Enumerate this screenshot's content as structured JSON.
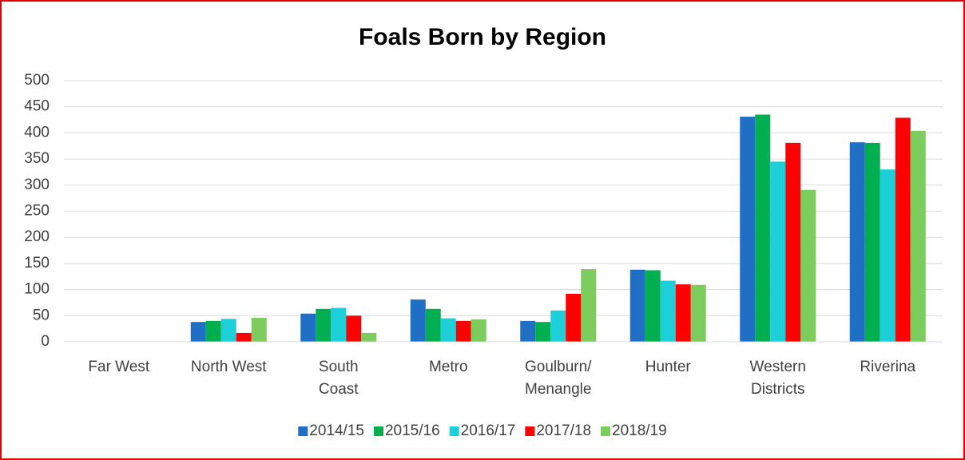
{
  "chart_data": {
    "type": "bar",
    "title": "Foals Born by Region",
    "categories": [
      "Far West",
      "North West",
      "South Coast",
      "Metro",
      "Goulburn/Menangle",
      "Hunter",
      "Western Districts",
      "Riverina"
    ],
    "series": [
      {
        "name": "2014/15",
        "color": "#1f6fc5",
        "values": [
          0,
          38,
          54,
          81,
          40,
          138,
          431,
          382
        ]
      },
      {
        "name": "2015/16",
        "color": "#00b050",
        "values": [
          0,
          40,
          63,
          63,
          38,
          137,
          435,
          381
        ]
      },
      {
        "name": "2016/17",
        "color": "#1ccfd8",
        "values": [
          0,
          44,
          65,
          45,
          60,
          117,
          345,
          330
        ]
      },
      {
        "name": "2017/18",
        "color": "#ff0000",
        "values": [
          0,
          17,
          50,
          40,
          92,
          110,
          381,
          429
        ]
      },
      {
        "name": "2018/19",
        "color": "#7ccc5e",
        "values": [
          0,
          46,
          17,
          43,
          139,
          109,
          291,
          404
        ]
      }
    ],
    "ylim": [
      0,
      500
    ],
    "yticks": [
      0,
      50,
      100,
      150,
      200,
      250,
      300,
      350,
      400,
      450,
      500
    ],
    "grid": true,
    "legend": "bottom"
  }
}
